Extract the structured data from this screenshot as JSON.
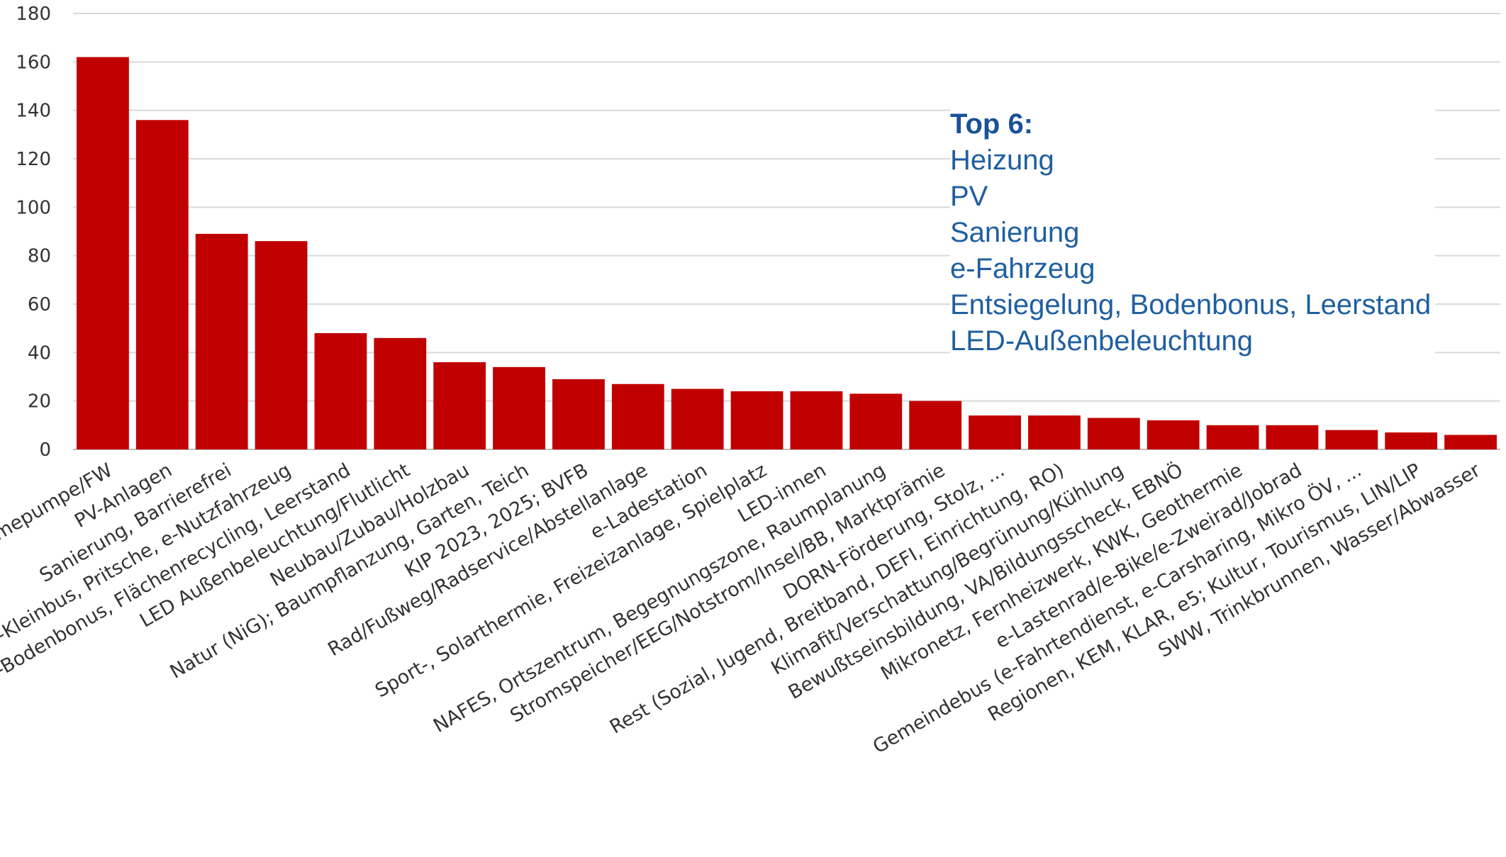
{
  "chart_data": {
    "type": "bar",
    "title": "",
    "xlabel": "",
    "ylabel": "",
    "ylim": [
      0,
      180
    ],
    "yticks": [
      0,
      20,
      40,
      60,
      80,
      100,
      120,
      140,
      160,
      180
    ],
    "grid": true,
    "bar_color": "#C00000",
    "categories": [
      "Heizung/Wärmepumpe/FW",
      "PV-Anlagen",
      "Sanierung, Barrierefrei",
      "e-PKW, e-Kleinbus, Pritsche, e-Nutzfahrzeug",
      "Entsiegelung-Bodenbonus, Flächenrecycling, Leerstand",
      "LED Außenbeleuchtung/Flutlicht",
      "Neubau/Zubau/Holzbau",
      "Natur (NiG); Baumpflanzung, Garten, Teich",
      "KIP 2023, 2025; BVFB",
      "Rad/Fußweg/Radservice/Abstellanlage",
      "e-Ladestation",
      "Sport-, Solarthermie, Freizeizanlage, Spielplatz",
      "LED-innen",
      "NAFES, Ortszentrum, Begegnungszone, Raumplanung",
      "Stromspeicher/EEG/Notstrom/Insel/BB, Marktprämie",
      "DORN-Förderung, Stolz, ...",
      "Rest (Sozial, Jugend, Breitband, DEFI, Einrichtung, RO)",
      "Klimafit/Verschattung/Begrünung/Kühlung",
      "Bewußtseinsbildung, VA/Bildungsscheck, EBNÖ",
      "Mikronetz, Fernheizwerk, KWK, Geothermie",
      "e-Lastenrad/e-Bike/e-Zweirad/Jobrad",
      "Gemeindebus (e-Fahrtendienst, e-Carsharing, Mikro ÖV, ...",
      "Regionen, KEM, KLAR, e5; Kultur, Tourismus, LIN/LIP",
      "SWW, Trinkbrunnen, Wasser/Abwasser"
    ],
    "values": [
      162,
      136,
      89,
      86,
      48,
      46,
      36,
      34,
      29,
      27,
      25,
      24,
      24,
      23,
      20,
      14,
      14,
      13,
      12,
      10,
      10,
      8,
      7,
      6
    ]
  },
  "annotation": {
    "title": "Top 6:",
    "lines": [
      "Heizung",
      "PV",
      "Sanierung",
      "e-Fahrzeug",
      "Entsiegelung, Bodenbonus, Leerstand",
      "LED-Außenbeleuchtung"
    ]
  }
}
